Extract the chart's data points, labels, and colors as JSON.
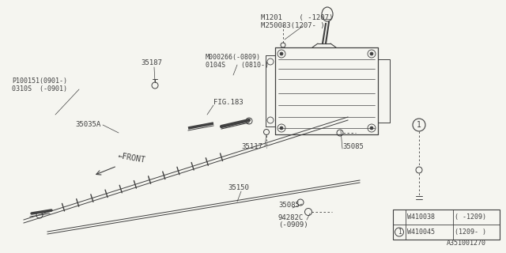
{
  "bg_color": "#f5f5f0",
  "line_color": "#404040",
  "title_m1201": "M1201    ( -1207)",
  "title_m250083": "M250083(1207- )",
  "label_m000266": "M000266(-0809)",
  "label_0104s": "0104S    (0810-)",
  "label_p100151": "P100151(0901-)",
  "label_0310s": "0310S  (-0901)",
  "label_fig183": "FIG.183",
  "label_35187": "35187",
  "label_35035a": "35035A",
  "label_35117": "35117",
  "label_35085a": "35085",
  "label_35150": "35150",
  "label_35085b": "35085",
  "label_94282c": "94282C",
  "label_0909": "(-0909)",
  "label_front": "←FRONT",
  "label_w410038": "W410038",
  "label_w410045": "W410045",
  "label_note1": "( -1209)",
  "label_note2": "(1209- )",
  "diagram_code": "A351001270",
  "circle_label": "1"
}
